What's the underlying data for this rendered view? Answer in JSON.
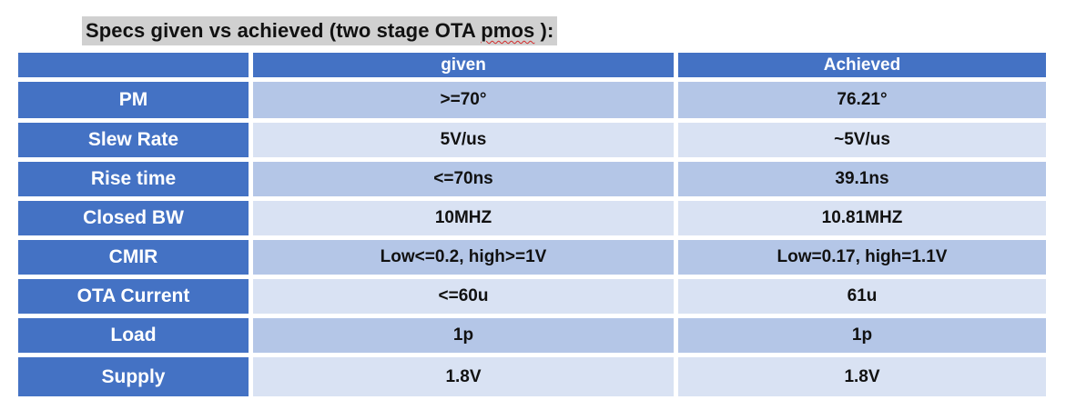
{
  "heading": {
    "prefix": "Specs given vs achieved (two stage OTA ",
    "flagged_word": "pmos",
    "suffix": " ):"
  },
  "table": {
    "headers": [
      "",
      "given",
      "Achieved"
    ],
    "rows": [
      {
        "label": "PM",
        "given": ">=70°",
        "achieved": "76.21°"
      },
      {
        "label": "Slew Rate",
        "given": "5V/us",
        "achieved": "~5V/us"
      },
      {
        "label": "Rise time",
        "given": "<=70ns",
        "achieved": "39.1ns"
      },
      {
        "label": "Closed BW",
        "given": "10MHZ",
        "achieved": "10.81MHZ"
      },
      {
        "label": "CMIR",
        "given": "Low<=0.2, high>=1V",
        "achieved": "Low=0.17, high=1.1V"
      },
      {
        "label": "OTA Current",
        "given": "<=60u",
        "achieved": "61u"
      },
      {
        "label": "Load",
        "given": "1p",
        "achieved": "1p"
      },
      {
        "label": "Supply",
        "given": "1.8V",
        "achieved": "1.8V"
      }
    ]
  },
  "colors": {
    "header_blue": "#4472c4",
    "band_dark": "#b4c6e7",
    "band_light": "#d9e2f3",
    "title_highlight": "#d0d0d0"
  }
}
